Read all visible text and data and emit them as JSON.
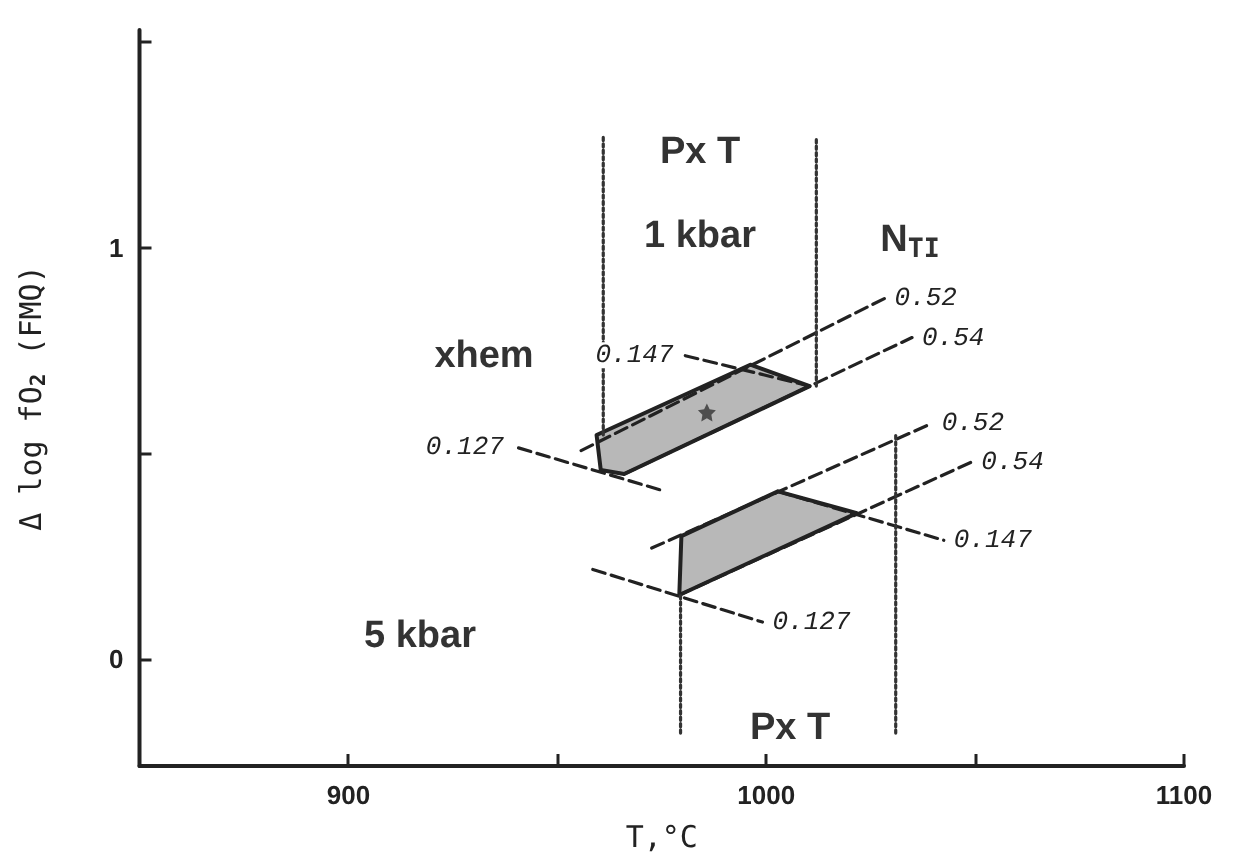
{
  "chart_data": {
    "type": "line",
    "xlabel": "T,°C",
    "ylabel": "Δ log fO$_{2}$ (FMQ)",
    "xlim": [
      850,
      1100
    ],
    "xticks": [
      900,
      {
        "value": 950,
        "label": null
      },
      1000,
      {
        "value": 1050,
        "label": null
      },
      1100
    ],
    "ylim": [
      -0.26,
      1.53
    ],
    "yticks": [
      0,
      {
        "value": 0.5,
        "label": null
      },
      1,
      {
        "value": 1.5,
        "label": null
      }
    ],
    "grid": false,
    "legend": false,
    "marker": "none",
    "line_style": "dashed",
    "series": [
      {
        "type": "area",
        "color": "#b8b8b8",
        "x": [
          959.4,
          996.2,
          1010.4,
          966.0,
          960.4
        ],
        "values": [
          0.545,
          0.716,
          0.664,
          0.45,
          0.46
        ]
      },
      {
        "type": "area",
        "color": "#b8b8b8",
        "x": [
          979.7,
          1002.8,
          1021.7,
          979.2
        ],
        "values": [
          0.299,
          0.408,
          0.355,
          0.156
        ]
      },
      {
        "name": "0.52",
        "color": "#222222",
        "x": [
          955.7,
          1028.3
        ],
        "values": [
          0.507,
          0.877
        ]
      },
      {
        "name": "0.54",
        "color": "#222222",
        "x": [
          966.0,
          1034.9
        ],
        "values": [
          0.45,
          0.782
        ]
      },
      {
        "name": "0.147",
        "color": "#222222",
        "x": [
          1010.4,
          980.2
        ],
        "values": [
          0.664,
          0.739
        ]
      },
      {
        "name": "0.127",
        "color": "#222222",
        "x": [
          974.5,
          939.6
        ],
        "values": [
          0.412,
          0.517
        ]
      },
      {
        "name": "0.52",
        "color": "#222222",
        "x": [
          972.6,
          1039.6
        ],
        "values": [
          0.27,
          0.573
        ]
      },
      {
        "name": "0.54",
        "color": "#222222",
        "x": [
          979.2,
          1049.1
        ],
        "values": [
          0.156,
          0.479
        ]
      },
      {
        "name": "0.147",
        "color": "#222222",
        "x": [
          1002.8,
          1042.5
        ],
        "values": [
          0.408,
          0.289
        ]
      },
      {
        "name": "0.127",
        "color": "#222222",
        "x": [
          958.5,
          999.1
        ],
        "values": [
          0.218,
          0.09
        ]
      },
      {
        "color": "#333333",
        "line_style": "dotted",
        "x": [
          961,
          961
        ],
        "values": [
          0.545,
          1.27
        ]
      },
      {
        "color": "#333333",
        "line_style": "dotted",
        "x": [
          1012,
          1012
        ],
        "values": [
          0.664,
          1.27
        ]
      },
      {
        "color": "#333333",
        "line_style": "dotted",
        "x": [
          979.5,
          979.5
        ],
        "values": [
          -0.18,
          0.156
        ]
      },
      {
        "color": "#333333",
        "line_style": "dotted",
        "x": [
          1031,
          1031
        ],
        "values": [
          -0.18,
          0.55
        ]
      },
      {
        "type": "scatter",
        "marker": "star",
        "color": "#333333",
        "x": [
          985.8
        ],
        "values": [
          0.6
        ]
      }
    ],
    "annotations": [
      "Px T",
      "1 kbar",
      "N$_{TI}$",
      "xhem",
      "5 kbar",
      "Px T"
    ]
  }
}
